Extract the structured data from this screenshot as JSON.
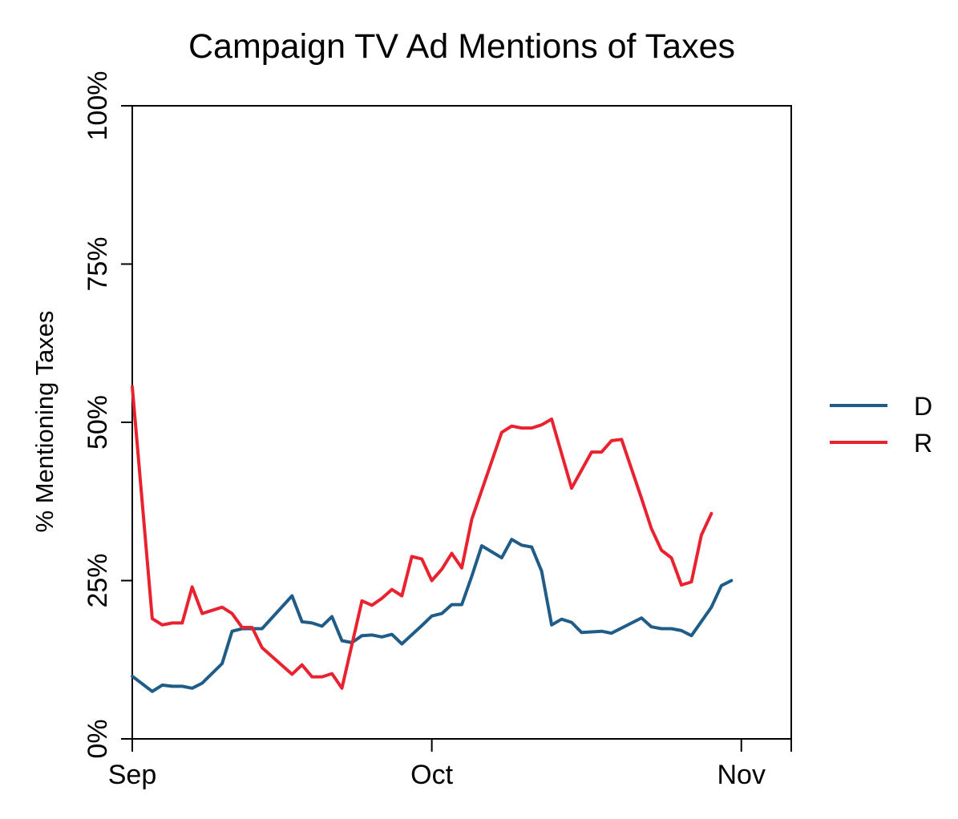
{
  "chart_data": {
    "type": "line",
    "title": "Campaign TV Ad Mentions of Taxes",
    "xlabel": "",
    "ylabel": "% Mentioning Taxes",
    "x_ticks": [
      {
        "label": "Sep",
        "day": 0
      },
      {
        "label": "Oct",
        "day": 30
      },
      {
        "label": "Nov",
        "day": 61
      }
    ],
    "xlim_days": [
      0,
      66
    ],
    "y_ticks": [
      {
        "label": "0%",
        "value": 0
      },
      {
        "label": "25%",
        "value": 25
      },
      {
        "label": "50%",
        "value": 50
      },
      {
        "label": "75%",
        "value": 75
      },
      {
        "label": "100%",
        "value": 100
      }
    ],
    "ylim": [
      0,
      100
    ],
    "grid": false,
    "legend_position": "right",
    "series": [
      {
        "name": "D",
        "color": "#1f5c88",
        "points": [
          [
            0,
            9.9
          ],
          [
            2,
            7.5
          ],
          [
            3,
            8.5
          ],
          [
            4,
            8.3
          ],
          [
            5,
            8.3
          ],
          [
            6,
            8.0
          ],
          [
            7,
            8.8
          ],
          [
            9,
            11.9
          ],
          [
            10,
            17.0
          ],
          [
            11,
            17.4
          ],
          [
            12,
            17.4
          ],
          [
            13,
            17.4
          ],
          [
            16,
            22.6
          ],
          [
            17,
            18.5
          ],
          [
            18,
            18.3
          ],
          [
            19,
            17.8
          ],
          [
            20,
            19.3
          ],
          [
            21,
            15.5
          ],
          [
            22,
            15.2
          ],
          [
            23,
            16.3
          ],
          [
            24,
            16.4
          ],
          [
            25,
            16.1
          ],
          [
            26,
            16.5
          ],
          [
            27,
            15.0
          ],
          [
            29,
            17.9
          ],
          [
            30,
            19.4
          ],
          [
            31,
            19.8
          ],
          [
            32,
            21.2
          ],
          [
            33,
            21.2
          ],
          [
            34,
            25.7
          ],
          [
            35,
            30.5
          ],
          [
            37,
            28.6
          ],
          [
            38,
            31.5
          ],
          [
            39,
            30.6
          ],
          [
            40,
            30.3
          ],
          [
            41,
            26.5
          ],
          [
            42,
            18.0
          ],
          [
            43,
            18.9
          ],
          [
            44,
            18.4
          ],
          [
            45,
            16.8
          ],
          [
            47,
            17.0
          ],
          [
            48,
            16.7
          ],
          [
            51,
            19.1
          ],
          [
            52,
            17.7
          ],
          [
            53,
            17.4
          ],
          [
            54,
            17.4
          ],
          [
            55,
            17.1
          ],
          [
            56,
            16.3
          ],
          [
            58,
            20.8
          ],
          [
            59,
            24.2
          ],
          [
            60,
            25.0
          ]
        ]
      },
      {
        "name": "R",
        "color": "#e8232f",
        "points": [
          [
            0,
            55.6
          ],
          [
            2,
            19.0
          ],
          [
            3,
            18.0
          ],
          [
            4,
            18.3
          ],
          [
            5,
            18.3
          ],
          [
            6,
            24.0
          ],
          [
            7,
            19.8
          ],
          [
            9,
            20.8
          ],
          [
            10,
            19.8
          ],
          [
            11,
            17.6
          ],
          [
            12,
            17.6
          ],
          [
            13,
            14.4
          ],
          [
            16,
            10.2
          ],
          [
            17,
            11.7
          ],
          [
            18,
            9.8
          ],
          [
            19,
            9.8
          ],
          [
            20,
            10.3
          ],
          [
            21,
            8.0
          ],
          [
            23,
            21.8
          ],
          [
            24,
            21.1
          ],
          [
            25,
            22.2
          ],
          [
            26,
            23.6
          ],
          [
            27,
            22.6
          ],
          [
            28,
            28.8
          ],
          [
            29,
            28.4
          ],
          [
            30,
            25.0
          ],
          [
            31,
            26.8
          ],
          [
            32,
            29.3
          ],
          [
            33,
            27.0
          ],
          [
            34,
            34.7
          ],
          [
            37,
            48.4
          ],
          [
            38,
            49.4
          ],
          [
            39,
            49.1
          ],
          [
            40,
            49.1
          ],
          [
            41,
            49.6
          ],
          [
            42,
            50.5
          ],
          [
            44,
            39.6
          ],
          [
            46,
            45.3
          ],
          [
            47,
            45.3
          ],
          [
            48,
            47.1
          ],
          [
            49,
            47.3
          ],
          [
            51,
            38.0
          ],
          [
            52,
            33.2
          ],
          [
            53,
            29.8
          ],
          [
            54,
            28.6
          ],
          [
            55,
            24.3
          ],
          [
            56,
            24.8
          ],
          [
            57,
            32.2
          ],
          [
            58,
            35.6
          ]
        ]
      }
    ]
  }
}
